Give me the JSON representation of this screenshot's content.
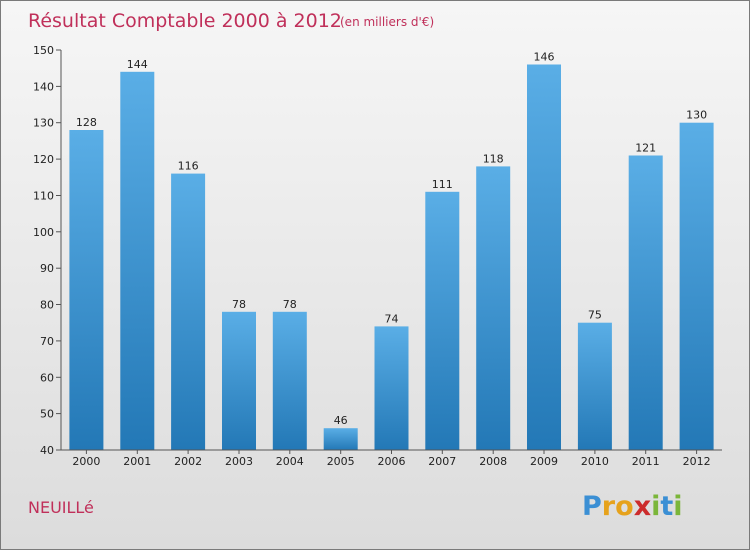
{
  "chart_data": {
    "type": "bar",
    "title": "Résultat Comptable 2000 à 2012",
    "subtitle": "(en milliers d'€)",
    "categories": [
      "2000",
      "2001",
      "2002",
      "2003",
      "2004",
      "2005",
      "2006",
      "2007",
      "2008",
      "2009",
      "2010",
      "2011",
      "2012"
    ],
    "values": [
      128,
      144,
      116,
      78,
      78,
      46,
      74,
      111,
      118,
      146,
      75,
      121,
      130
    ],
    "ylim": [
      40,
      150
    ],
    "yticks": [
      40,
      50,
      60,
      70,
      80,
      90,
      100,
      110,
      120,
      130,
      140,
      150
    ],
    "xlabel": "",
    "ylabel": "",
    "grid": false,
    "bar_color_top": "#5aaee6",
    "bar_color_bottom": "#2378b6"
  },
  "commune": "NEUILLé",
  "logo": {
    "text": "Proxiti",
    "letters": [
      "P",
      "r",
      "o",
      "x",
      "i",
      "t",
      "i"
    ],
    "colors": [
      "#3b8fd4",
      "#e6a21c",
      "#e6a21c",
      "#cc2c2c",
      "#7bb63a",
      "#3b8fd4",
      "#7bb63a"
    ]
  }
}
